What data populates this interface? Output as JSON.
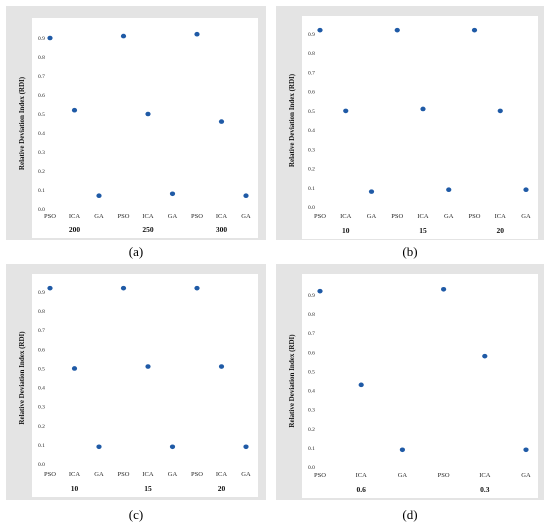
{
  "marker_color": "#1f5aa6",
  "panel_bg": "#e4e4e4",
  "chart_data": [
    {
      "type": "scatter",
      "panel": "a",
      "caption": "(a)",
      "ylabel": "Relative Deviation Index (RDI)",
      "yticks": [
        "0.0",
        "0.1",
        "0.2",
        "0.3",
        "0.4",
        "0.5",
        "0.6",
        "0.7",
        "0.8",
        "0.9"
      ],
      "ylim": [
        0,
        0.95
      ],
      "categories": [
        "PSO",
        "ICA",
        "GA",
        "PSO",
        "ICA",
        "GA",
        "PSO",
        "ICA",
        "GA"
      ],
      "groups": [
        "200",
        "250",
        "300"
      ],
      "values": [
        0.9,
        0.52,
        0.07,
        0.91,
        0.5,
        0.08,
        0.92,
        0.46,
        0.07
      ]
    },
    {
      "type": "scatter",
      "panel": "b",
      "caption": "(b)",
      "ylabel": "Relative Deviation Index (RDI)",
      "yticks": [
        "0.0",
        "0.1",
        "0.2",
        "0.3",
        "0.4",
        "0.5",
        "0.6",
        "0.7",
        "0.8",
        "0.9"
      ],
      "ylim": [
        0,
        0.95
      ],
      "categories": [
        "PSO",
        "ICA",
        "GA",
        "PSO",
        "ICA",
        "GA",
        "PSO",
        "ICA",
        "GA"
      ],
      "groups": [
        "10",
        "15",
        "20"
      ],
      "values": [
        0.92,
        0.5,
        0.08,
        0.92,
        0.51,
        0.09,
        0.92,
        0.5,
        0.09
      ]
    },
    {
      "type": "scatter",
      "panel": "c",
      "caption": "(c)",
      "ylabel": "Relative Deviation Index (RDI)",
      "yticks": [
        "0.0",
        "0.1",
        "0.2",
        "0.3",
        "0.4",
        "0.5",
        "0.6",
        "0.7",
        "0.8",
        "0.9"
      ],
      "ylim": [
        0,
        0.95
      ],
      "categories": [
        "PSO",
        "ICA",
        "GA",
        "PSO",
        "ICA",
        "GA",
        "PSO",
        "ICA",
        "GA"
      ],
      "groups": [
        "10",
        "15",
        "20"
      ],
      "values": [
        0.92,
        0.5,
        0.09,
        0.92,
        0.51,
        0.09,
        0.92,
        0.51,
        0.09
      ]
    },
    {
      "type": "scatter",
      "panel": "d",
      "caption": "(d)",
      "ylabel": "Relative Deviation Index (RDI)",
      "yticks": [
        "0.0",
        "0.1",
        "0.2",
        "0.3",
        "0.4",
        "0.5",
        "0.6",
        "0.7",
        "0.8",
        "0.9"
      ],
      "ylim": [
        0,
        0.95
      ],
      "categories": [
        "PSO",
        "ICA",
        "GA",
        "PSO",
        "ICA",
        "GA"
      ],
      "groups": [
        "0.6",
        "0.3"
      ],
      "values": [
        0.92,
        0.43,
        0.09,
        0.93,
        0.58,
        0.09
      ]
    }
  ]
}
